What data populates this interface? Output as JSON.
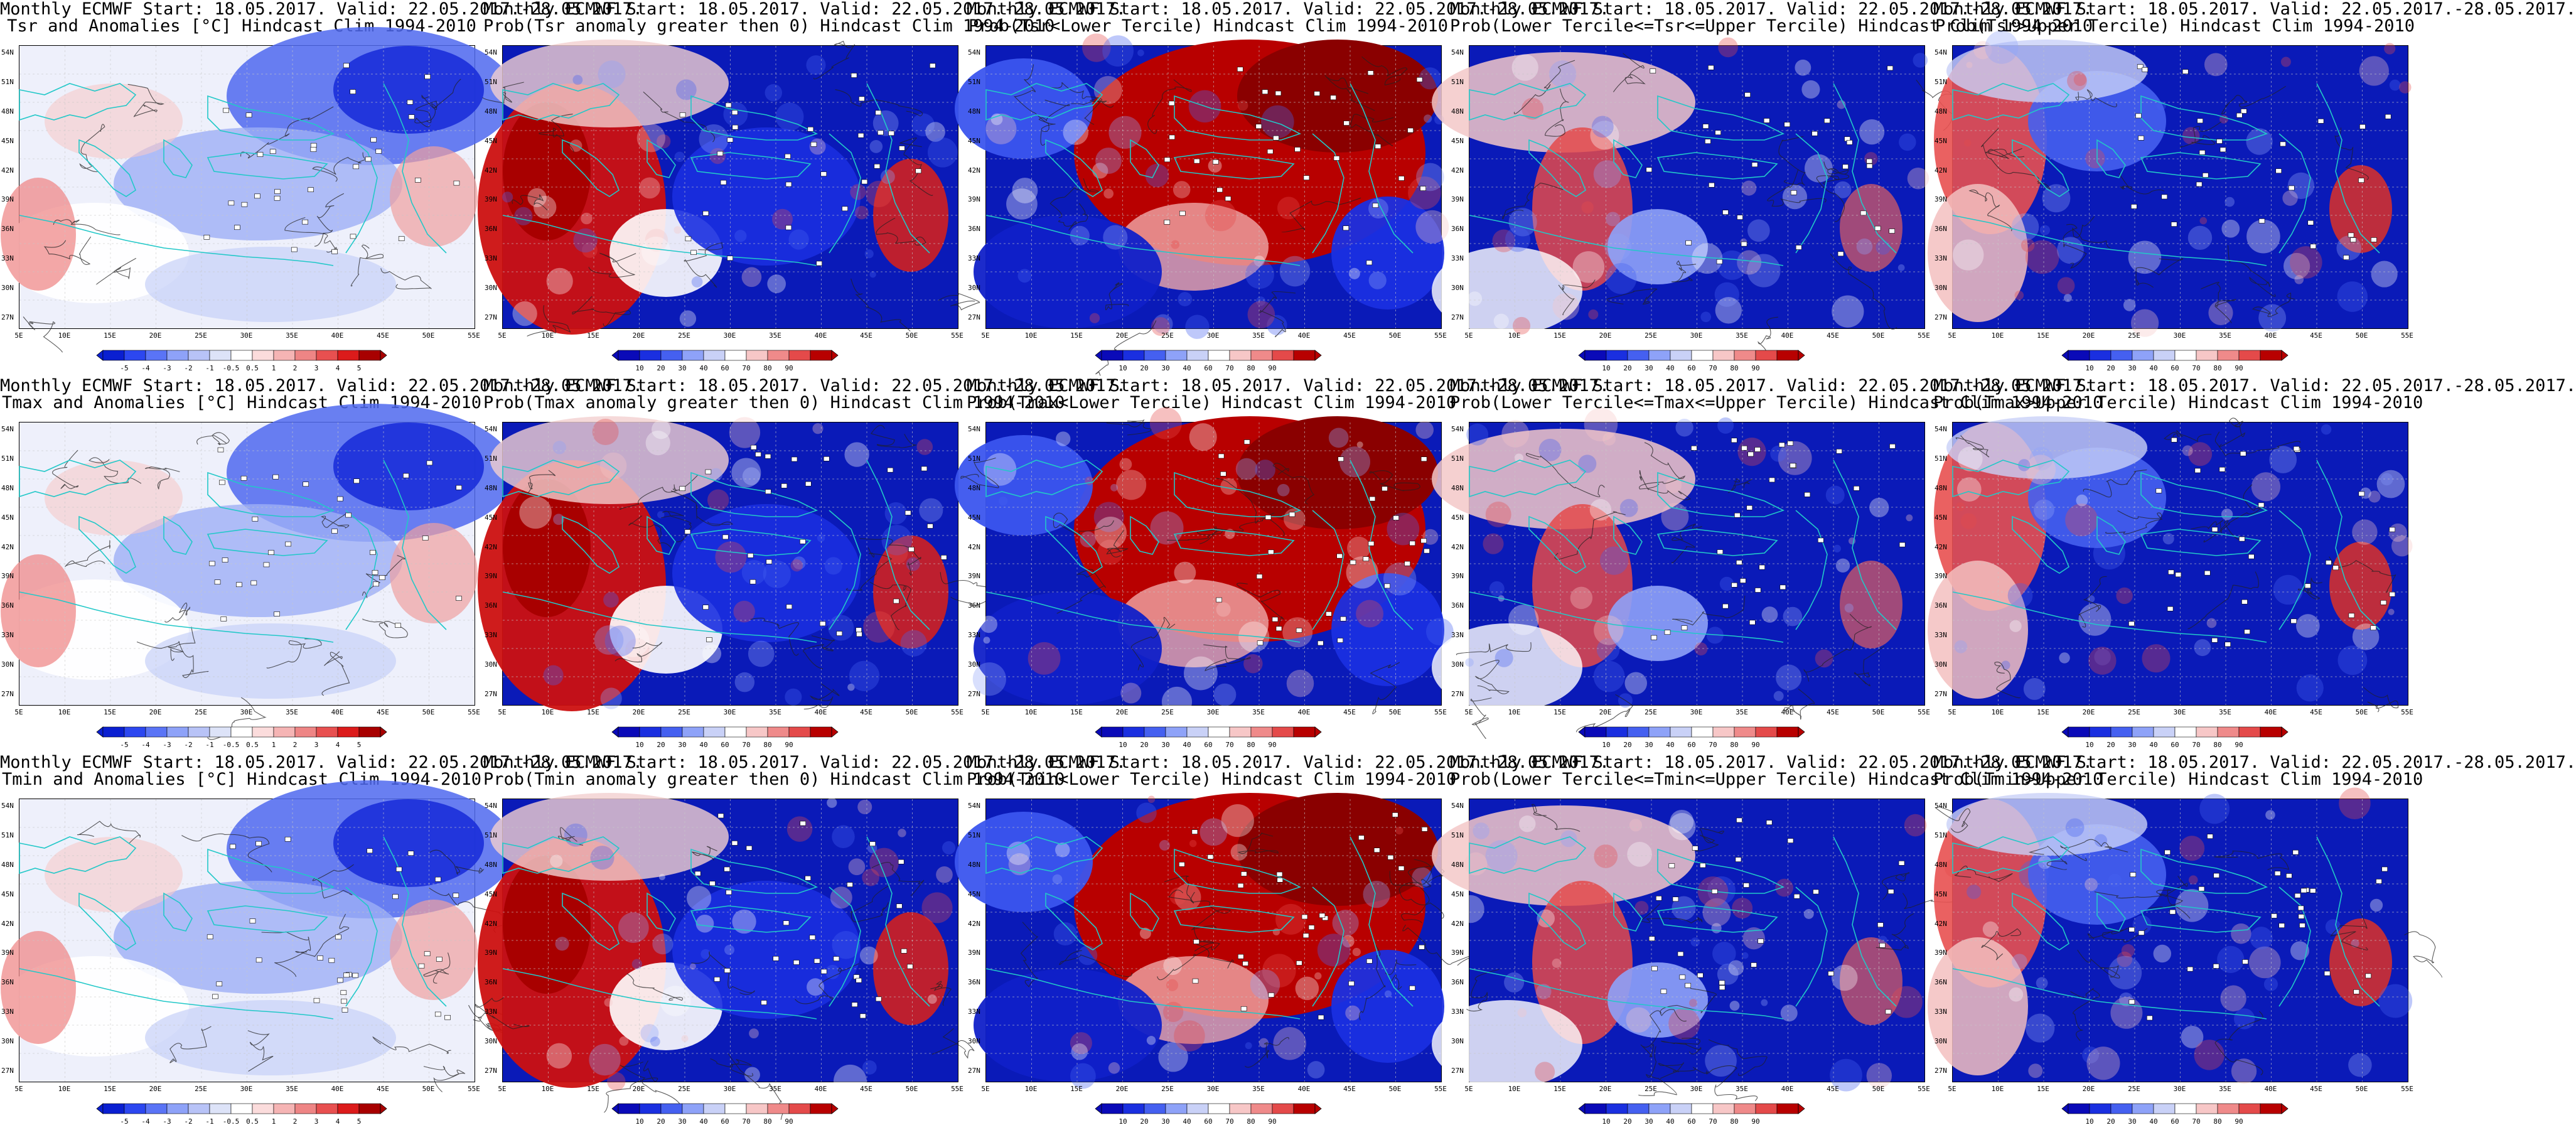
{
  "rows": [
    {
      "variable": "Tsr",
      "panels": [
        {
          "title1": "Monthly ECMWF Start: 18.05.2017. Valid: 22.05.2017.-28.05.2017.",
          "title2": "Tsr and Anomalies [°C] Hindcast Clim 1994-2010",
          "type": "anomaly",
          "field": "Tsr anomaly"
        },
        {
          "title1": "Monthly ECMWF Start: 18.05.2017. Valid: 22.05.2017.-28.05.2017.",
          "title2": "Prob(Tsr anomaly greater then 0) Hindcast Clim 1994-2010",
          "type": "prob",
          "field": "P(anom>0)"
        },
        {
          "title1": "Monthly ECMWF Start: 18.05.2017. Valid: 22.05.2017.-28.05.2017.",
          "title2": "Prob(Tsr<Lower Tercile) Hindcast Clim 1994-2010",
          "type": "prob",
          "field": "P(lower)"
        },
        {
          "title1": "Monthly ECMWF Start: 18.05.2017. Valid: 22.05.2017.-28.05.2017.",
          "title2": "Prob(Lower Tercile<=Tsr<=Upper Tercile) Hindcast Clim 1994-2010",
          "type": "prob",
          "field": "P(middle)"
        },
        {
          "title1": "Monthly ECMWF Start: 18.05.2017. Valid: 22.05.2017.-28.05.2017.",
          "title2": "Prob(Tsr>Upper Tercile) Hindcast Clim 1994-2010",
          "type": "prob",
          "field": "P(upper)"
        }
      ]
    },
    {
      "variable": "Tmax",
      "panels": [
        {
          "title1": "Monthly ECMWF Start: 18.05.2017. Valid: 22.05.2017.-28.05.2017.",
          "title2": "Tmax and Anomalies [°C] Hindcast Clim 1994-2010",
          "type": "anomaly",
          "field": "Tmax anomaly"
        },
        {
          "title1": "Monthly ECMWF Start: 18.05.2017. Valid: 22.05.2017.-28.05.2017.",
          "title2": "Prob(Tmax anomaly greater then 0) Hindcast Clim 1994-2010",
          "type": "prob",
          "field": "P(anom>0)"
        },
        {
          "title1": "Monthly ECMWF Start: 18.05.2017. Valid: 22.05.2017.-28.05.2017.",
          "title2": "Prob(Tmax<Lower Tercile) Hindcast Clim 1994-2010",
          "type": "prob",
          "field": "P(lower)"
        },
        {
          "title1": "Monthly ECMWF Start: 18.05.2017. Valid: 22.05.2017.-28.05.2017.",
          "title2": "Prob(Lower Tercile<=Tmax<=Upper Tercile) Hindcast Clim 1994-2010",
          "type": "prob",
          "field": "P(middle)"
        },
        {
          "title1": "Monthly ECMWF Start: 18.05.2017. Valid: 22.05.2017.-28.05.2017.",
          "title2": "Prob(Tmax>Upper Tercile) Hindcast Clim 1994-2010",
          "type": "prob",
          "field": "P(upper)"
        }
      ]
    },
    {
      "variable": "Tmin",
      "panels": [
        {
          "title1": "Monthly ECMWF Start: 18.05.2017. Valid: 22.05.2017.-28.05.2017.",
          "title2": "Tmin and Anomalies [°C] Hindcast Clim 1994-2010",
          "type": "anomaly",
          "field": "Tmin anomaly"
        },
        {
          "title1": "Monthly ECMWF Start: 18.05.2017. Valid: 22.05.2017.-28.05.2017.",
          "title2": "Prob(Tmin anomaly greater then 0) Hindcast Clim 1994-2010",
          "type": "prob",
          "field": "P(anom>0)"
        },
        {
          "title1": "Monthly ECMWF Start: 18.05.2017. Valid: 22.05.2017.-28.05.2017.",
          "title2": "Prob(Tmin<Lower Tercile) Hindcast Clim 1994-2010",
          "type": "prob",
          "field": "P(lower)"
        },
        {
          "title1": "Monthly ECMWF Start: 18.05.2017. Valid: 22.05.2017.-28.05.2017.",
          "title2": "Prob(Lower Tercile<=Tmin<=Upper Tercile) Hindcast Clim 1994-2010",
          "type": "prob",
          "field": "P(middle)"
        },
        {
          "title1": "Monthly ECMWF Start: 18.05.2017. Valid: 22.05.2017.-28.05.2017.",
          "title2": "Prob(Tmin>Upper Tercile) Hindcast Clim 1994-2010",
          "type": "prob",
          "field": "P(upper)"
        }
      ]
    }
  ],
  "lat_labels": [
    "54N",
    "51N",
    "48N",
    "45N",
    "42N",
    "39N",
    "36N",
    "33N",
    "30N",
    "27N"
  ],
  "lon_labels": [
    "5E",
    "10E",
    "15E",
    "20E",
    "25E",
    "30E",
    "35E",
    "40E",
    "45E",
    "50E",
    "55E"
  ],
  "anomaly_colorbar": {
    "labels": [
      "-5",
      "-4",
      "-3",
      "-2",
      "-1",
      "-0.5",
      "0.5",
      "1",
      "2",
      "3",
      "4",
      "5"
    ],
    "colors": [
      "#0a1fd1",
      "#2c47f0",
      "#5a74f6",
      "#8ea2f8",
      "#b8c3f7",
      "#dde3f8",
      "#ffffff",
      "#fbdcdc",
      "#f5b4b4",
      "#ee8585",
      "#e85050",
      "#dc1b1b",
      "#a80000"
    ]
  },
  "prob_colorbar": {
    "labels": [
      "10",
      "20",
      "30",
      "40",
      "60",
      "70",
      "80",
      "90"
    ],
    "colors": [
      "#0a0ab8",
      "#1a2fe0",
      "#4560f0",
      "#8ea2f8",
      "#c9d1f7",
      "#ffffff",
      "#f7c7c7",
      "#ef8a8a",
      "#e44a4a",
      "#b80000"
    ]
  },
  "colors": {
    "coast": "#22c8c8",
    "contour": "#222222",
    "gridline": "#c8c8c8"
  }
}
